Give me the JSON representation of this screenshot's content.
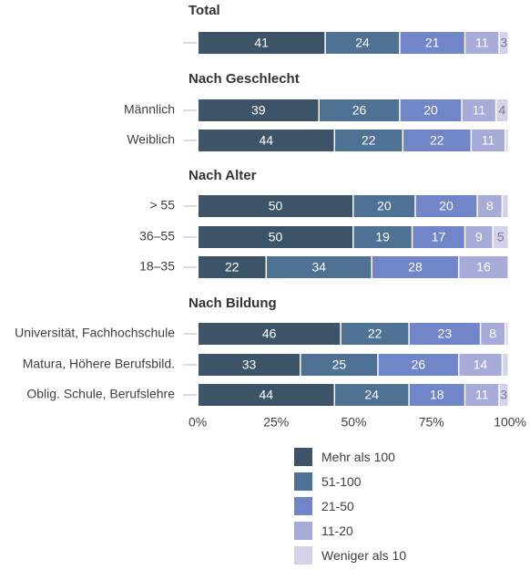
{
  "chart_data": {
    "type": "bar",
    "orientation": "horizontal",
    "stacked": true,
    "xlim": [
      0,
      100
    ],
    "xticks": [
      "0%",
      "25%",
      "50%",
      "75%",
      "100%"
    ],
    "colors": [
      "#3d5468",
      "#4f7194",
      "#7086c8",
      "#a8aad8",
      "#d2d2e8"
    ],
    "legend": [
      "Mehr als 100",
      "51-100",
      "21-50",
      "11-20",
      "Weniger als 10"
    ],
    "groups": [
      {
        "title": "Total",
        "rows": [
          {
            "label": "",
            "values": [
              41,
              24,
              21,
              11,
              3
            ]
          }
        ]
      },
      {
        "title": "Nach Geschlecht",
        "rows": [
          {
            "label": "Männlich",
            "values": [
              39,
              26,
              20,
              11,
              4
            ]
          },
          {
            "label": "Weiblich",
            "values": [
              44,
              22,
              22,
              11,
              1
            ]
          }
        ]
      },
      {
        "title": "Nach Alter",
        "rows": [
          {
            "label": "> 55",
            "values": [
              50,
              20,
              20,
              8,
              2
            ]
          },
          {
            "label": "36–55",
            "values": [
              50,
              19,
              17,
              9,
              5
            ]
          },
          {
            "label": "18–35",
            "values": [
              22,
              34,
              28,
              16,
              0
            ]
          }
        ]
      },
      {
        "title": "Nach Bildung",
        "rows": [
          {
            "label": "Universität, Fachhochschule",
            "values": [
              46,
              22,
              23,
              8,
              1
            ]
          },
          {
            "label": "Matura, Höhere Berufsbild.",
            "values": [
              33,
              25,
              26,
              14,
              2
            ]
          },
          {
            "label": "Oblig. Schule, Berufslehre",
            "values": [
              44,
              24,
              18,
              11,
              3
            ]
          }
        ]
      }
    ]
  }
}
